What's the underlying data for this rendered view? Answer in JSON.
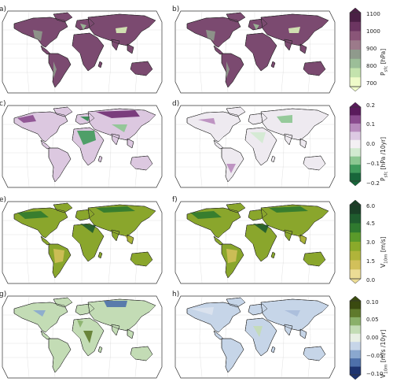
{
  "panels": [
    {
      "id": "a",
      "label": "a)",
      "scheme": "psfc"
    },
    {
      "id": "b",
      "label": "b)",
      "scheme": "psfc"
    },
    {
      "id": "c",
      "label": "c)",
      "scheme": "trend_p"
    },
    {
      "id": "d",
      "label": "d)",
      "scheme": "trend_p_weak"
    },
    {
      "id": "e",
      "label": "e)",
      "scheme": "wind"
    },
    {
      "id": "f",
      "label": "f)",
      "scheme": "wind"
    },
    {
      "id": "g",
      "label": "g)",
      "scheme": "trend_w"
    },
    {
      "id": "h",
      "label": "h)",
      "scheme": "trend_w_weak"
    }
  ],
  "colorbars": [
    {
      "id": "psfc",
      "var": "P",
      "sub": "sfc",
      "unit": " [hPa]",
      "ticks": [
        "1100",
        "1000",
        "900",
        "800",
        "700"
      ],
      "colors": [
        "#4b1f45",
        "#6c3561",
        "#8a5578",
        "#9c7a8a",
        "#8f9a8c",
        "#9cbe98",
        "#c4e3ad",
        "#effbc9"
      ]
    },
    {
      "id": "trend_p",
      "var": "P",
      "sub": "sfc",
      "unit": " [hPa /10yr]",
      "ticks": [
        "0.2",
        "0.1",
        "0.0",
        "−0.1",
        "−0.2"
      ],
      "colors": [
        "#5a1a5c",
        "#8a4b8e",
        "#b88bbd",
        "#ddc9e3",
        "#f4f0f4",
        "#d2ead0",
        "#8cc791",
        "#3f9a5b",
        "#17663a"
      ]
    },
    {
      "id": "wind",
      "var": "V",
      "sub": "10m",
      "unit": " [m/s]",
      "ticks": [
        "6.0",
        "4.5",
        "3.0",
        "1.5",
        "0.0"
      ],
      "colors": [
        "#1a3f26",
        "#1f5c2e",
        "#2f7a2f",
        "#5a9a2a",
        "#8aaa2a",
        "#b0b43a",
        "#d2c05a",
        "#ecdc95"
      ]
    },
    {
      "id": "trend_w",
      "var": "V",
      "sub": "10m",
      "unit": " [m/s /10yr]",
      "ticks": [
        "0.10",
        "0.05",
        "0.00",
        "−0.05",
        "−0.10"
      ],
      "colors": [
        "#3a4a10",
        "#5f7a2c",
        "#8ab06a",
        "#c3dcb5",
        "#e8efe4",
        "#c6d5e8",
        "#8aa8cf",
        "#4e70aa",
        "#1e3470"
      ]
    }
  ]
}
